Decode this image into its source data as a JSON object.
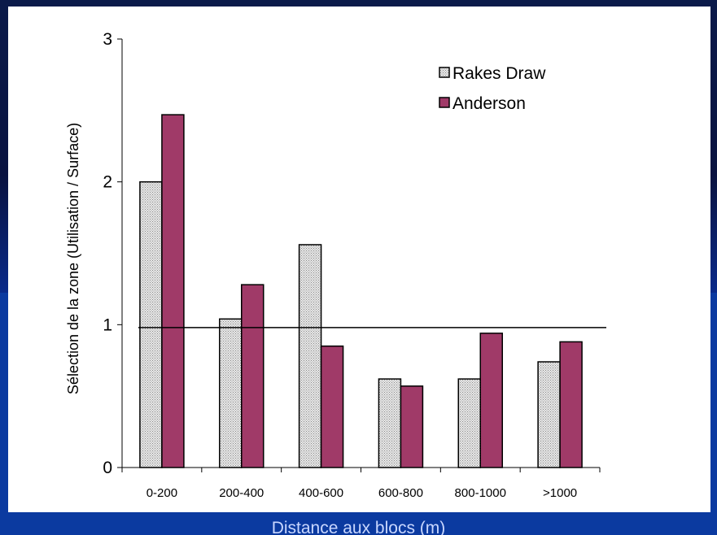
{
  "chart_data": {
    "type": "bar",
    "title": "",
    "xlabel": "Distance aux blocs (m)",
    "ylabel": "Sélection de la zone (Utilisation / Surface)",
    "ylim": [
      0,
      3
    ],
    "yticks": [
      "0",
      "1",
      "2",
      "3"
    ],
    "categories": [
      "0-200",
      "200-400",
      "400-600",
      "600-800",
      "800-1000",
      ">1000"
    ],
    "series": [
      {
        "name": "Rakes Draw",
        "values": [
          2.0,
          1.04,
          1.56,
          0.62,
          0.62,
          0.74
        ],
        "color": "#d0d0d0"
      },
      {
        "name": "Anderson",
        "values": [
          2.47,
          1.28,
          0.85,
          0.57,
          0.94,
          0.88
        ],
        "color": "#a03a68"
      }
    ],
    "reference_line": 0.98,
    "legend_position": "top-right",
    "grid": false
  }
}
